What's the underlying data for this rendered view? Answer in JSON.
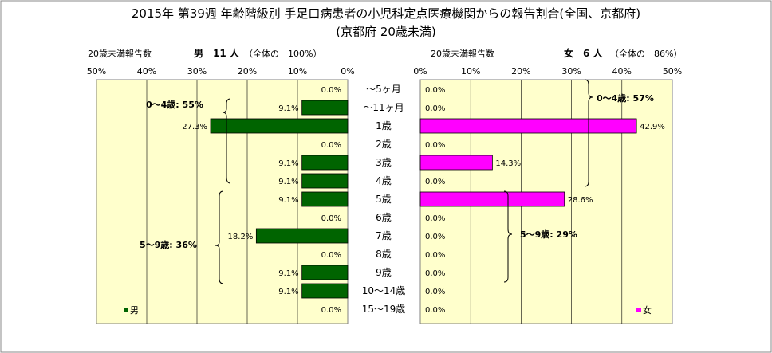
{
  "title_line1": "2015年 第39週 年齢階級別 手足口病患者の小児科定点医療機関からの報告割合(全国、京都府)",
  "title_line2": "(京都府 20歳未満)",
  "left_panel": {
    "header_label": "20歳未満報告数",
    "header_count": "男　11 人",
    "header_total": "（全体の　100%）",
    "legend": "男",
    "group_labels": [
      "0～4歳: 55%",
      "5～9歳: 36%"
    ]
  },
  "right_panel": {
    "header_label": "20歳未満報告数",
    "header_count": "女　6 人",
    "header_total": "（全体の　86%）",
    "legend": "女",
    "group_labels": [
      "0～4歳: 57%",
      "5～9歳: 29%"
    ]
  },
  "colors": {
    "male": "#006400",
    "female": "#FF00FF",
    "plot_bg": "#FFFFCC"
  },
  "chart_data": {
    "type": "bar",
    "orientation": "horizontal-population-pyramid",
    "categories": [
      "～5ヶ月",
      "～11ヶ月",
      "1歳",
      "2歳",
      "3歳",
      "4歳",
      "5歳",
      "6歳",
      "7歳",
      "8歳",
      "9歳",
      "10～14歳",
      "15～19歳"
    ],
    "series": [
      {
        "name": "男",
        "values": [
          0.0,
          9.1,
          27.3,
          0.0,
          9.1,
          9.1,
          9.1,
          0.0,
          18.2,
          0.0,
          9.1,
          9.1,
          0.0
        ],
        "labels": [
          "0.0%",
          "9.1%",
          "27.3%",
          "0.0%",
          "9.1%",
          "9.1%",
          "9.1%",
          "0.0%",
          "18.2%",
          "0.0%",
          "9.1%",
          "9.1%",
          "0.0%"
        ]
      },
      {
        "name": "女",
        "values": [
          0.0,
          0.0,
          42.9,
          0.0,
          14.3,
          0.0,
          28.6,
          0.0,
          0.0,
          0.0,
          0.0,
          0.0,
          0.0
        ],
        "labels": [
          "0.0%",
          "0.0%",
          "42.9%",
          "0.0%",
          "14.3%",
          "0.0%",
          "28.6%",
          "0.0%",
          "0.0%",
          "0.0%",
          "0.0%",
          "0.0%",
          "0.0%"
        ]
      }
    ],
    "left_ticks": [
      "50%",
      "40%",
      "30%",
      "20%",
      "10%",
      "0%"
    ],
    "right_ticks": [
      "0%",
      "10%",
      "20%",
      "30%",
      "40%",
      "50%"
    ],
    "xlim": [
      0,
      50
    ],
    "grid": true
  }
}
